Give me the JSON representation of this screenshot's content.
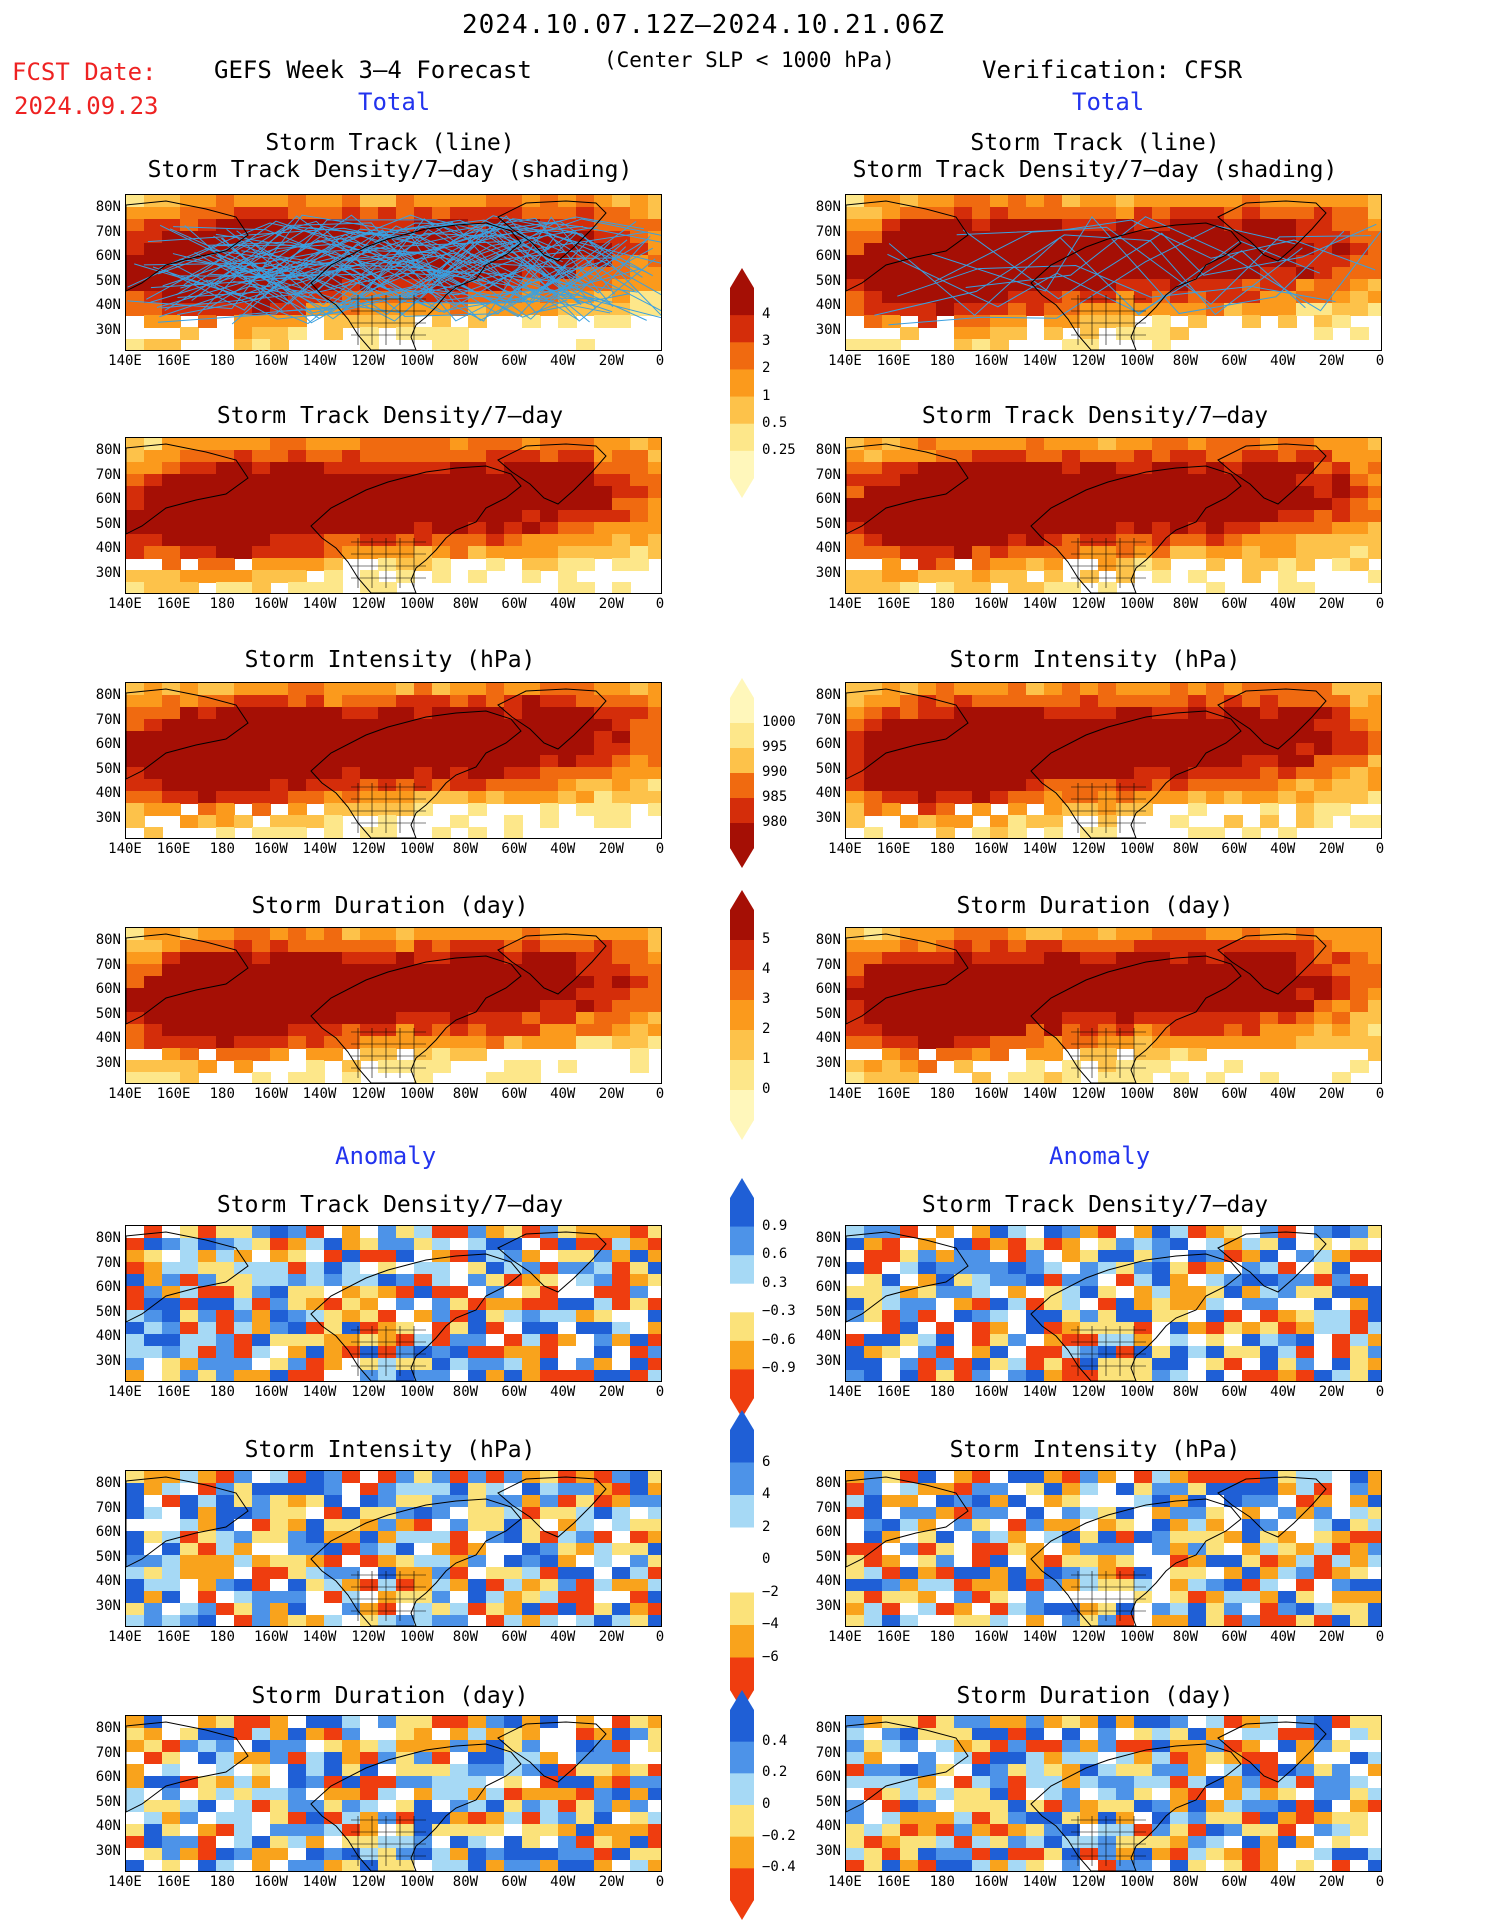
{
  "header": {
    "title": "2024.10.07.12Z–2024.10.21.06Z",
    "fcst_label": "FCST Date:",
    "fcst_date": "2024.09.23",
    "forecast_title": "GEFS Week 3–4 Forecast",
    "criterion": "(Center SLP < 1000 hPa)",
    "verification": "Verification: CFSR",
    "left_total": "Total",
    "right_total": "Total",
    "left_anomaly": "Anomaly",
    "right_anomaly": "Anomaly"
  },
  "panel_titles": {
    "track_line": "Storm Track (line)",
    "track_density_shading": "Storm Track Density/7–day (shading)",
    "track_density": "Storm Track Density/7–day",
    "intensity": "Storm Intensity (hPa)",
    "duration": "Storm Duration (day)"
  },
  "axes": {
    "lat_labels": [
      "80N",
      "70N",
      "60N",
      "50N",
      "40N",
      "30N"
    ],
    "lon_labels": [
      "140E",
      "160E",
      "180",
      "160W",
      "140W",
      "120W",
      "100W",
      "80W",
      "60W",
      "40W",
      "20W",
      "0"
    ]
  },
  "colorbars": {
    "density": [
      "4",
      "3",
      "2",
      "1",
      "0.5",
      "0.25"
    ],
    "intensity": [
      "1000",
      "995",
      "990",
      "985",
      "980"
    ],
    "duration": [
      "5",
      "4",
      "3",
      "2",
      "1",
      "0"
    ],
    "density_anom": [
      "0.9",
      "0.6",
      "0.3",
      "−0.3",
      "−0.6",
      "−0.9"
    ],
    "intensity_anom": [
      "6",
      "4",
      "2",
      "0",
      "−2",
      "−4",
      "−6"
    ],
    "duration_anom": [
      "0.4",
      "0.2",
      "0",
      "−0.2",
      "−0.4"
    ]
  },
  "colors": {
    "total_scale": [
      "#fff7bb",
      "#fde78a",
      "#fdc24a",
      "#fb9a1c",
      "#f06a10",
      "#d42d0a",
      "#a50f05"
    ],
    "anom_scale": [
      "#1f5fd6",
      "#4d93e8",
      "#a6d9f5",
      "#ffffff",
      "#fbe27a",
      "#f9a31c",
      "#ef3d0f"
    ],
    "track_line": "#3aa0e0"
  }
}
